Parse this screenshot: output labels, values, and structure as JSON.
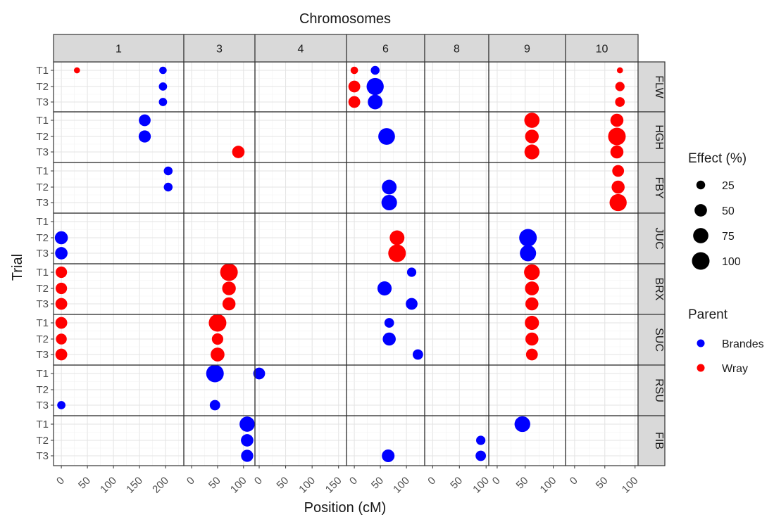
{
  "chart_data": {
    "type": "scatter",
    "title": "Chromosomes",
    "xlabel": "Position (cM)",
    "ylabel": "Trial",
    "grid": true,
    "chromosomes": [
      {
        "label": "1",
        "xlim": [
          -15,
          235
        ],
        "ticks": [
          0,
          50,
          100,
          150,
          200
        ]
      },
      {
        "label": "3",
        "xlim": [
          -15,
          122
        ],
        "ticks": [
          0,
          50,
          100
        ]
      },
      {
        "label": "4",
        "xlim": [
          -8,
          165
        ],
        "ticks": [
          0,
          50,
          100,
          150
        ]
      },
      {
        "label": "6",
        "xlim": [
          -15,
          135
        ],
        "ticks": [
          0,
          50,
          100
        ]
      },
      {
        "label": "8",
        "xlim": [
          -15,
          105
        ],
        "ticks": [
          0,
          50,
          100
        ]
      },
      {
        "label": "9",
        "xlim": [
          -15,
          122
        ],
        "ticks": [
          0,
          50,
          100
        ]
      },
      {
        "label": "10",
        "xlim": [
          -15,
          105
        ],
        "ticks": [
          0,
          50,
          100
        ]
      }
    ],
    "traits": [
      "FLW",
      "HGH",
      "FBY",
      "JUC",
      "BRX",
      "SUC",
      "RSU",
      "FIB"
    ],
    "trials": [
      "T1",
      "T2",
      "T3"
    ],
    "legend": {
      "placement": "right",
      "size_title": "Effect (%)",
      "size_values": [
        25,
        50,
        75,
        100
      ],
      "color_title": "Parent",
      "parents": [
        {
          "name": "Brandes",
          "color": "#0000ff"
        },
        {
          "name": "Wray",
          "color": "#ff0000"
        }
      ]
    },
    "points": [
      {
        "trait": "FLW",
        "chrom": "1",
        "trial": "T1",
        "pos": 30,
        "effect": 12,
        "parent": "Wray"
      },
      {
        "trait": "FLW",
        "chrom": "1",
        "trial": "T1",
        "pos": 195,
        "effect": 18,
        "parent": "Brandes"
      },
      {
        "trait": "FLW",
        "chrom": "1",
        "trial": "T2",
        "pos": 195,
        "effect": 22,
        "parent": "Brandes"
      },
      {
        "trait": "FLW",
        "chrom": "1",
        "trial": "T3",
        "pos": 195,
        "effect": 22,
        "parent": "Brandes"
      },
      {
        "trait": "FLW",
        "chrom": "6",
        "trial": "T1",
        "pos": 0,
        "effect": 18,
        "parent": "Wray"
      },
      {
        "trait": "FLW",
        "chrom": "6",
        "trial": "T1",
        "pos": 40,
        "effect": 25,
        "parent": "Brandes"
      },
      {
        "trait": "FLW",
        "chrom": "6",
        "trial": "T2",
        "pos": 0,
        "effect": 45,
        "parent": "Wray"
      },
      {
        "trait": "FLW",
        "chrom": "6",
        "trial": "T2",
        "pos": 40,
        "effect": 95,
        "parent": "Brandes"
      },
      {
        "trait": "FLW",
        "chrom": "6",
        "trial": "T3",
        "pos": 0,
        "effect": 45,
        "parent": "Wray"
      },
      {
        "trait": "FLW",
        "chrom": "6",
        "trial": "T3",
        "pos": 40,
        "effect": 70,
        "parent": "Brandes"
      },
      {
        "trait": "FLW",
        "chrom": "10",
        "trial": "T1",
        "pos": 75,
        "effect": 12,
        "parent": "Wray"
      },
      {
        "trait": "FLW",
        "chrom": "10",
        "trial": "T2",
        "pos": 75,
        "effect": 28,
        "parent": "Wray"
      },
      {
        "trait": "FLW",
        "chrom": "10",
        "trial": "T3",
        "pos": 75,
        "effect": 30,
        "parent": "Wray"
      },
      {
        "trait": "HGH",
        "chrom": "1",
        "trial": "T1",
        "pos": 160,
        "effect": 45,
        "parent": "Brandes"
      },
      {
        "trait": "HGH",
        "chrom": "1",
        "trial": "T2",
        "pos": 160,
        "effect": 48,
        "parent": "Brandes"
      },
      {
        "trait": "HGH",
        "chrom": "3",
        "trial": "T3",
        "pos": 90,
        "effect": 50,
        "parent": "Wray"
      },
      {
        "trait": "HGH",
        "chrom": "6",
        "trial": "T2",
        "pos": 62,
        "effect": 90,
        "parent": "Brandes"
      },
      {
        "trait": "HGH",
        "chrom": "9",
        "trial": "T1",
        "pos": 62,
        "effect": 75,
        "parent": "Wray"
      },
      {
        "trait": "HGH",
        "chrom": "9",
        "trial": "T2",
        "pos": 62,
        "effect": 60,
        "parent": "Wray"
      },
      {
        "trait": "HGH",
        "chrom": "9",
        "trial": "T3",
        "pos": 62,
        "effect": 72,
        "parent": "Wray"
      },
      {
        "trait": "HGH",
        "chrom": "10",
        "trial": "T1",
        "pos": 70,
        "effect": 55,
        "parent": "Wray"
      },
      {
        "trait": "HGH",
        "chrom": "10",
        "trial": "T2",
        "pos": 70,
        "effect": 100,
        "parent": "Wray"
      },
      {
        "trait": "HGH",
        "chrom": "10",
        "trial": "T3",
        "pos": 70,
        "effect": 55,
        "parent": "Wray"
      },
      {
        "trait": "FBY",
        "chrom": "1",
        "trial": "T1",
        "pos": 205,
        "effect": 25,
        "parent": "Brandes"
      },
      {
        "trait": "FBY",
        "chrom": "1",
        "trial": "T2",
        "pos": 205,
        "effect": 25,
        "parent": "Brandes"
      },
      {
        "trait": "FBY",
        "chrom": "6",
        "trial": "T2",
        "pos": 67,
        "effect": 70,
        "parent": "Brandes"
      },
      {
        "trait": "FBY",
        "chrom": "6",
        "trial": "T3",
        "pos": 67,
        "effect": 78,
        "parent": "Brandes"
      },
      {
        "trait": "FBY",
        "chrom": "10",
        "trial": "T1",
        "pos": 72,
        "effect": 45,
        "parent": "Wray"
      },
      {
        "trait": "FBY",
        "chrom": "10",
        "trial": "T2",
        "pos": 72,
        "effect": 55,
        "parent": "Wray"
      },
      {
        "trait": "FBY",
        "chrom": "10",
        "trial": "T3",
        "pos": 72,
        "effect": 95,
        "parent": "Wray"
      },
      {
        "trait": "JUC",
        "chrom": "1",
        "trial": "T2",
        "pos": 0,
        "effect": 55,
        "parent": "Brandes"
      },
      {
        "trait": "JUC",
        "chrom": "1",
        "trial": "T3",
        "pos": 0,
        "effect": 50,
        "parent": "Brandes"
      },
      {
        "trait": "JUC",
        "chrom": "6",
        "trial": "T2",
        "pos": 82,
        "effect": 70,
        "parent": "Wray"
      },
      {
        "trait": "JUC",
        "chrom": "6",
        "trial": "T3",
        "pos": 82,
        "effect": 100,
        "parent": "Wray"
      },
      {
        "trait": "JUC",
        "chrom": "9",
        "trial": "T2",
        "pos": 55,
        "effect": 100,
        "parent": "Brandes"
      },
      {
        "trait": "JUC",
        "chrom": "9",
        "trial": "T3",
        "pos": 55,
        "effect": 85,
        "parent": "Brandes"
      },
      {
        "trait": "BRX",
        "chrom": "1",
        "trial": "T1",
        "pos": 0,
        "effect": 42,
        "parent": "Wray"
      },
      {
        "trait": "BRX",
        "chrom": "1",
        "trial": "T2",
        "pos": 0,
        "effect": 42,
        "parent": "Wray"
      },
      {
        "trait": "BRX",
        "chrom": "1",
        "trial": "T3",
        "pos": 0,
        "effect": 45,
        "parent": "Wray"
      },
      {
        "trait": "BRX",
        "chrom": "3",
        "trial": "T1",
        "pos": 72,
        "effect": 100,
        "parent": "Wray"
      },
      {
        "trait": "BRX",
        "chrom": "3",
        "trial": "T2",
        "pos": 72,
        "effect": 60,
        "parent": "Wray"
      },
      {
        "trait": "BRX",
        "chrom": "3",
        "trial": "T3",
        "pos": 72,
        "effect": 55,
        "parent": "Wray"
      },
      {
        "trait": "BRX",
        "chrom": "6",
        "trial": "T1",
        "pos": 110,
        "effect": 28,
        "parent": "Brandes"
      },
      {
        "trait": "BRX",
        "chrom": "6",
        "trial": "T2",
        "pos": 58,
        "effect": 65,
        "parent": "Brandes"
      },
      {
        "trait": "BRX",
        "chrom": "6",
        "trial": "T3",
        "pos": 110,
        "effect": 45,
        "parent": "Brandes"
      },
      {
        "trait": "BRX",
        "chrom": "9",
        "trial": "T1",
        "pos": 62,
        "effect": 80,
        "parent": "Wray"
      },
      {
        "trait": "BRX",
        "chrom": "9",
        "trial": "T2",
        "pos": 62,
        "effect": 62,
        "parent": "Wray"
      },
      {
        "trait": "BRX",
        "chrom": "9",
        "trial": "T3",
        "pos": 62,
        "effect": 55,
        "parent": "Wray"
      },
      {
        "trait": "SUC",
        "chrom": "1",
        "trial": "T1",
        "pos": 0,
        "effect": 45,
        "parent": "Wray"
      },
      {
        "trait": "SUC",
        "chrom": "1",
        "trial": "T2",
        "pos": 0,
        "effect": 38,
        "parent": "Wray"
      },
      {
        "trait": "SUC",
        "chrom": "1",
        "trial": "T3",
        "pos": 0,
        "effect": 45,
        "parent": "Wray"
      },
      {
        "trait": "SUC",
        "chrom": "3",
        "trial": "T1",
        "pos": 50,
        "effect": 100,
        "parent": "Wray"
      },
      {
        "trait": "SUC",
        "chrom": "3",
        "trial": "T2",
        "pos": 50,
        "effect": 42,
        "parent": "Wray"
      },
      {
        "trait": "SUC",
        "chrom": "3",
        "trial": "T3",
        "pos": 50,
        "effect": 62,
        "parent": "Wray"
      },
      {
        "trait": "SUC",
        "chrom": "6",
        "trial": "T1",
        "pos": 67,
        "effect": 30,
        "parent": "Brandes"
      },
      {
        "trait": "SUC",
        "chrom": "6",
        "trial": "T2",
        "pos": 67,
        "effect": 55,
        "parent": "Brandes"
      },
      {
        "trait": "SUC",
        "chrom": "6",
        "trial": "T3",
        "pos": 122,
        "effect": 35,
        "parent": "Brandes"
      },
      {
        "trait": "SUC",
        "chrom": "9",
        "trial": "T1",
        "pos": 62,
        "effect": 65,
        "parent": "Wray"
      },
      {
        "trait": "SUC",
        "chrom": "9",
        "trial": "T2",
        "pos": 62,
        "effect": 55,
        "parent": "Wray"
      },
      {
        "trait": "SUC",
        "chrom": "9",
        "trial": "T3",
        "pos": 62,
        "effect": 45,
        "parent": "Wray"
      },
      {
        "trait": "RSU",
        "chrom": "1",
        "trial": "T3",
        "pos": 0,
        "effect": 22,
        "parent": "Brandes"
      },
      {
        "trait": "RSU",
        "chrom": "3",
        "trial": "T1",
        "pos": 45,
        "effect": 100,
        "parent": "Brandes"
      },
      {
        "trait": "RSU",
        "chrom": "3",
        "trial": "T3",
        "pos": 45,
        "effect": 35,
        "parent": "Brandes"
      },
      {
        "trait": "RSU",
        "chrom": "4",
        "trial": "T1",
        "pos": 0,
        "effect": 45,
        "parent": "Brandes"
      },
      {
        "trait": "FIB",
        "chrom": "3",
        "trial": "T1",
        "pos": 107,
        "effect": 75,
        "parent": "Brandes"
      },
      {
        "trait": "FIB",
        "chrom": "3",
        "trial": "T2",
        "pos": 107,
        "effect": 50,
        "parent": "Brandes"
      },
      {
        "trait": "FIB",
        "chrom": "3",
        "trial": "T3",
        "pos": 107,
        "effect": 48,
        "parent": "Brandes"
      },
      {
        "trait": "FIB",
        "chrom": "6",
        "trial": "T3",
        "pos": 65,
        "effect": 52,
        "parent": "Brandes"
      },
      {
        "trait": "FIB",
        "chrom": "8",
        "trial": "T2",
        "pos": 90,
        "effect": 28,
        "parent": "Brandes"
      },
      {
        "trait": "FIB",
        "chrom": "8",
        "trial": "T3",
        "pos": 90,
        "effect": 35,
        "parent": "Brandes"
      },
      {
        "trait": "FIB",
        "chrom": "9",
        "trial": "T1",
        "pos": 45,
        "effect": 80,
        "parent": "Brandes"
      }
    ]
  }
}
